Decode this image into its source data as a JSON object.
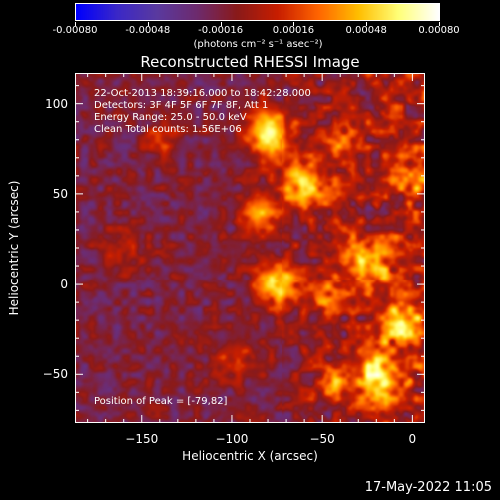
{
  "colorbar": {
    "tick_labels": [
      "-0.00080",
      "-0.00048",
      "-0.00016",
      "0.00016",
      "0.00048",
      "0.00080"
    ],
    "units": "(photons cm⁻² s⁻¹ asec⁻²)",
    "colors": [
      "#0000ff",
      "#3b28c8",
      "#5a3aa0",
      "#6e2b6e",
      "#8a1a1a",
      "#c81e00",
      "#ff6400",
      "#ffbe00",
      "#ffff78",
      "#ffffff"
    ]
  },
  "title": "Reconstructed RHESSI Image",
  "info": {
    "time": "22-Oct-2013 18:39:16.000 to 18:42:28.000",
    "detectors": "Detectors: 3F 4F 5F 6F 7F 8F, Att 1",
    "energy": "Energy Range: 25.0 - 50.0 keV",
    "clean": "Clean      Total counts: 1.56E+06",
    "peak": "Position of Peak = [-79,82]"
  },
  "axes": {
    "xlabel": "Heliocentric X (arcsec)",
    "ylabel": "Heliocentric Y (arcsec)",
    "xlim": [
      -187,
      7
    ],
    "ylim": [
      -77,
      117
    ],
    "xticks": [
      -150,
      -100,
      -50,
      0
    ],
    "yticks": [
      -50,
      0,
      50,
      100
    ]
  },
  "timestamp": "17-May-2022 11:05"
}
